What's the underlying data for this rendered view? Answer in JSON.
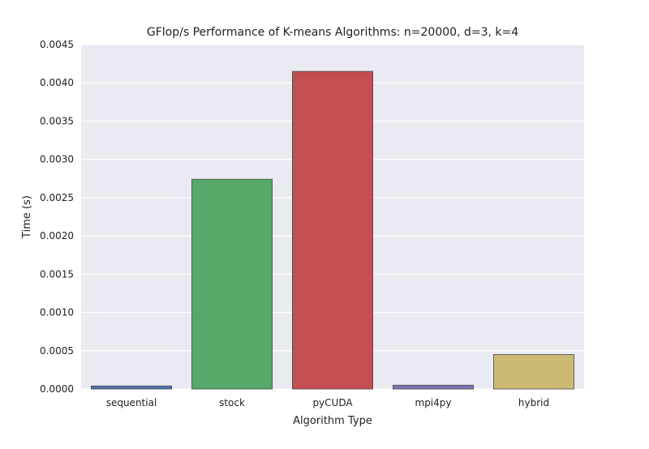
{
  "chart_data": {
    "type": "bar",
    "title": "GFlop/s Performance of K-means Algorithms: n=20000, d=3, k=4",
    "xlabel": "Algorithm Type",
    "ylabel": "Time (s)",
    "categories": [
      "sequential",
      "stock",
      "pyCUDA",
      "mpi4py",
      "hybrid"
    ],
    "values": [
      4e-05,
      0.00274,
      0.00415,
      5e-05,
      0.00045
    ],
    "colors": [
      "#4c72b0",
      "#55a868",
      "#c44e52",
      "#8172b2",
      "#ccb974"
    ],
    "ylim": [
      0,
      0.0045
    ],
    "yticks": [
      "0.0000",
      "0.0005",
      "0.0010",
      "0.0015",
      "0.0020",
      "0.0025",
      "0.0030",
      "0.0035",
      "0.0040",
      "0.0045"
    ],
    "grid": true,
    "legend": "none",
    "background": "#eaeaf2"
  }
}
